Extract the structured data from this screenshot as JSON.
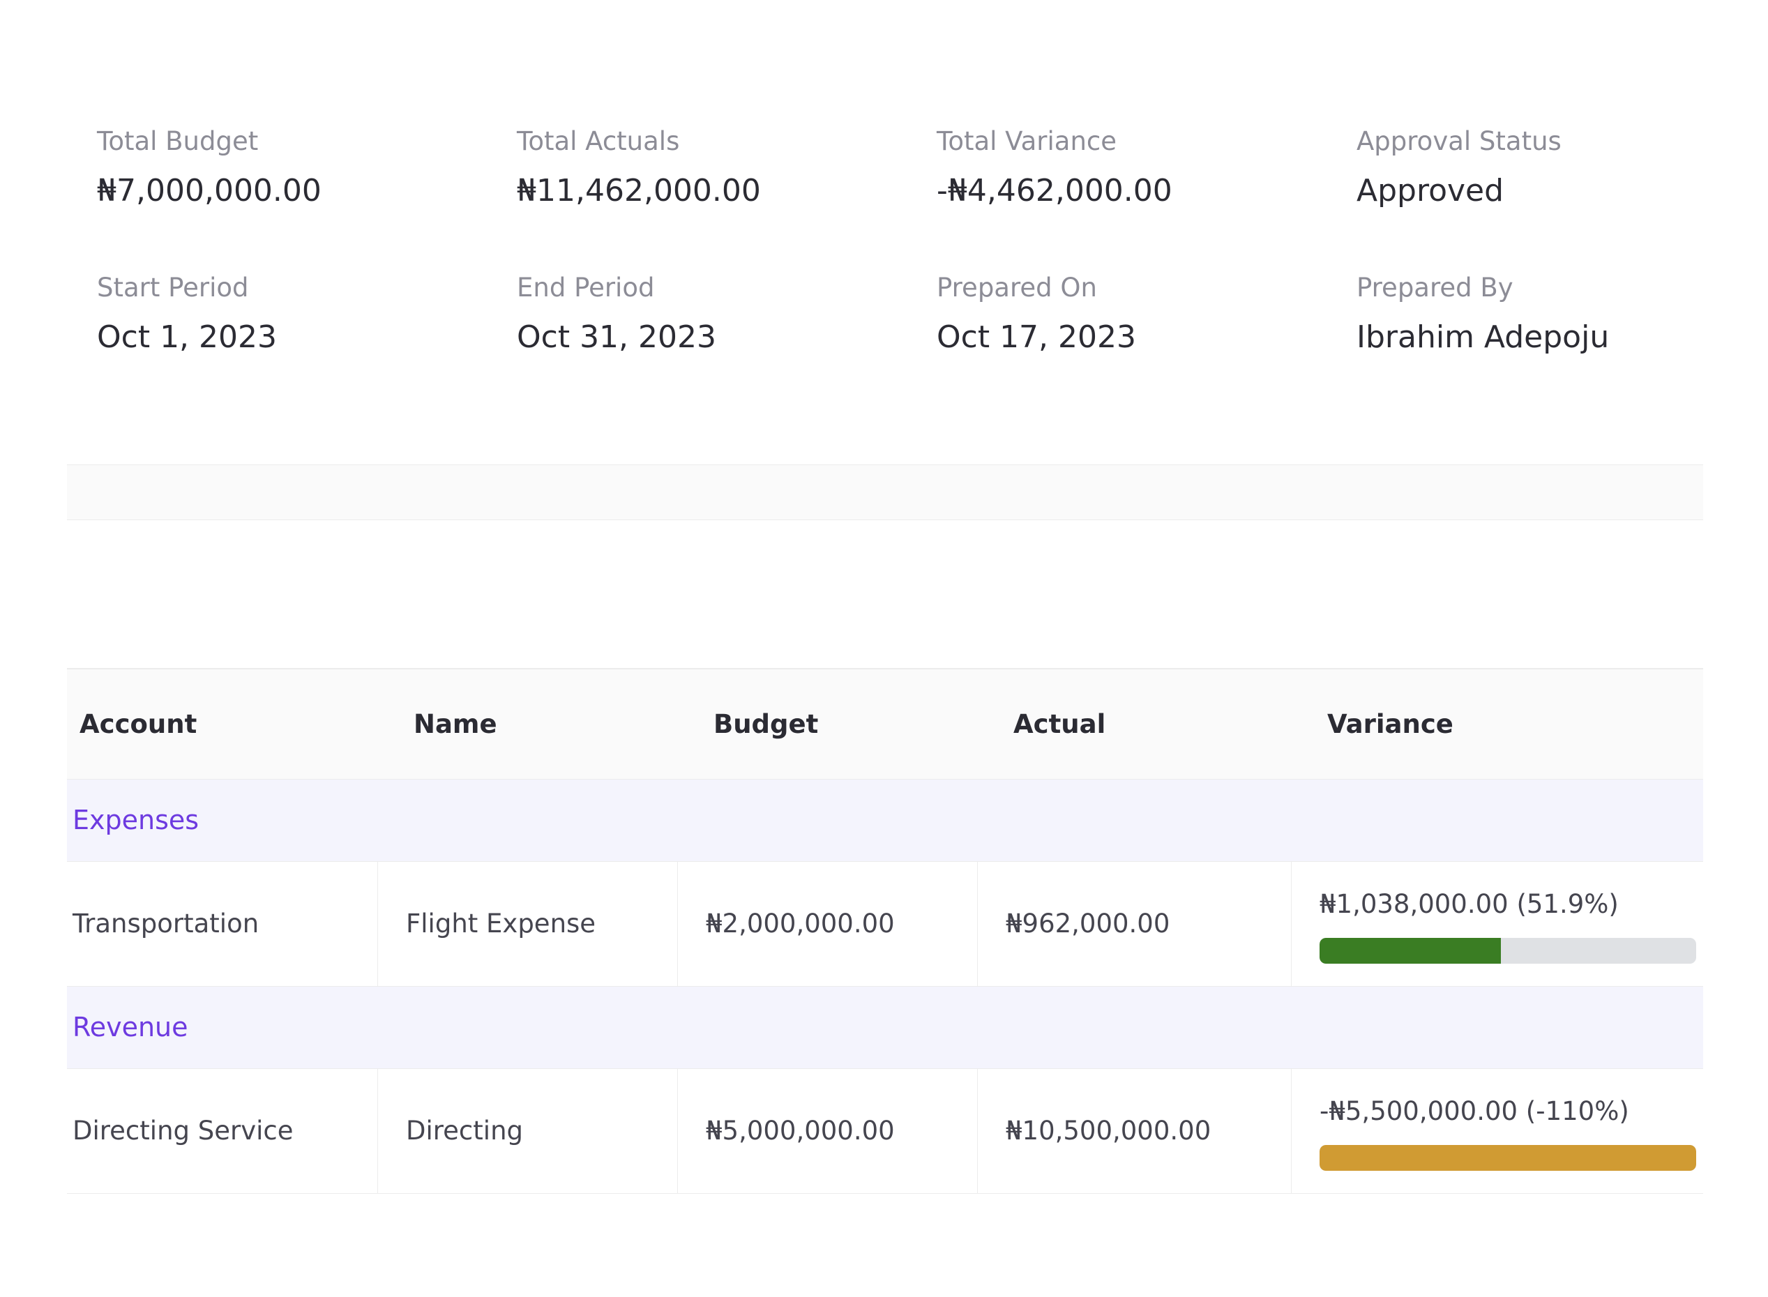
{
  "summary": {
    "total_budget": {
      "label": "Total Budget",
      "value": "₦7,000,000.00"
    },
    "total_actuals": {
      "label": "Total Actuals",
      "value": "₦11,462,000.00"
    },
    "total_variance": {
      "label": "Total Variance",
      "value": "-₦4,462,000.00"
    },
    "approval_status": {
      "label": "Approval Status",
      "value": "Approved"
    },
    "start_period": {
      "label": "Start Period",
      "value": "Oct 1, 2023"
    },
    "end_period": {
      "label": "End Period",
      "value": "Oct 31, 2023"
    },
    "prepared_on": {
      "label": "Prepared On",
      "value": "Oct 17, 2023"
    },
    "prepared_by": {
      "label": "Prepared By",
      "value": "Ibrahim Adepoju"
    }
  },
  "table": {
    "headers": {
      "account": "Account",
      "name": "Name",
      "budget": "Budget",
      "actual": "Actual",
      "variance": "Variance"
    },
    "groups": [
      {
        "label": "Expenses",
        "rows": [
          {
            "account": "Transportation",
            "name": "Flight Expense",
            "budget": "₦2,000,000.00",
            "actual": "₦962,000.00",
            "variance": "₦1,038,000.00 (51.9%)",
            "variance_bar_fraction": 0.481,
            "variance_bar_color": "#3a7d23"
          }
        ]
      },
      {
        "label": "Revenue",
        "rows": [
          {
            "account": "Directing Service",
            "name": "Directing",
            "budget": "₦5,000,000.00",
            "actual": "₦10,500,000.00",
            "variance": "-₦5,500,000.00 (-110%)",
            "variance_bar_fraction": 1.0,
            "variance_bar_color": "#d09b33"
          }
        ]
      }
    ]
  },
  "colors": {
    "group_label": "#6d3ae0",
    "bar_track": "#dfe1e4"
  }
}
